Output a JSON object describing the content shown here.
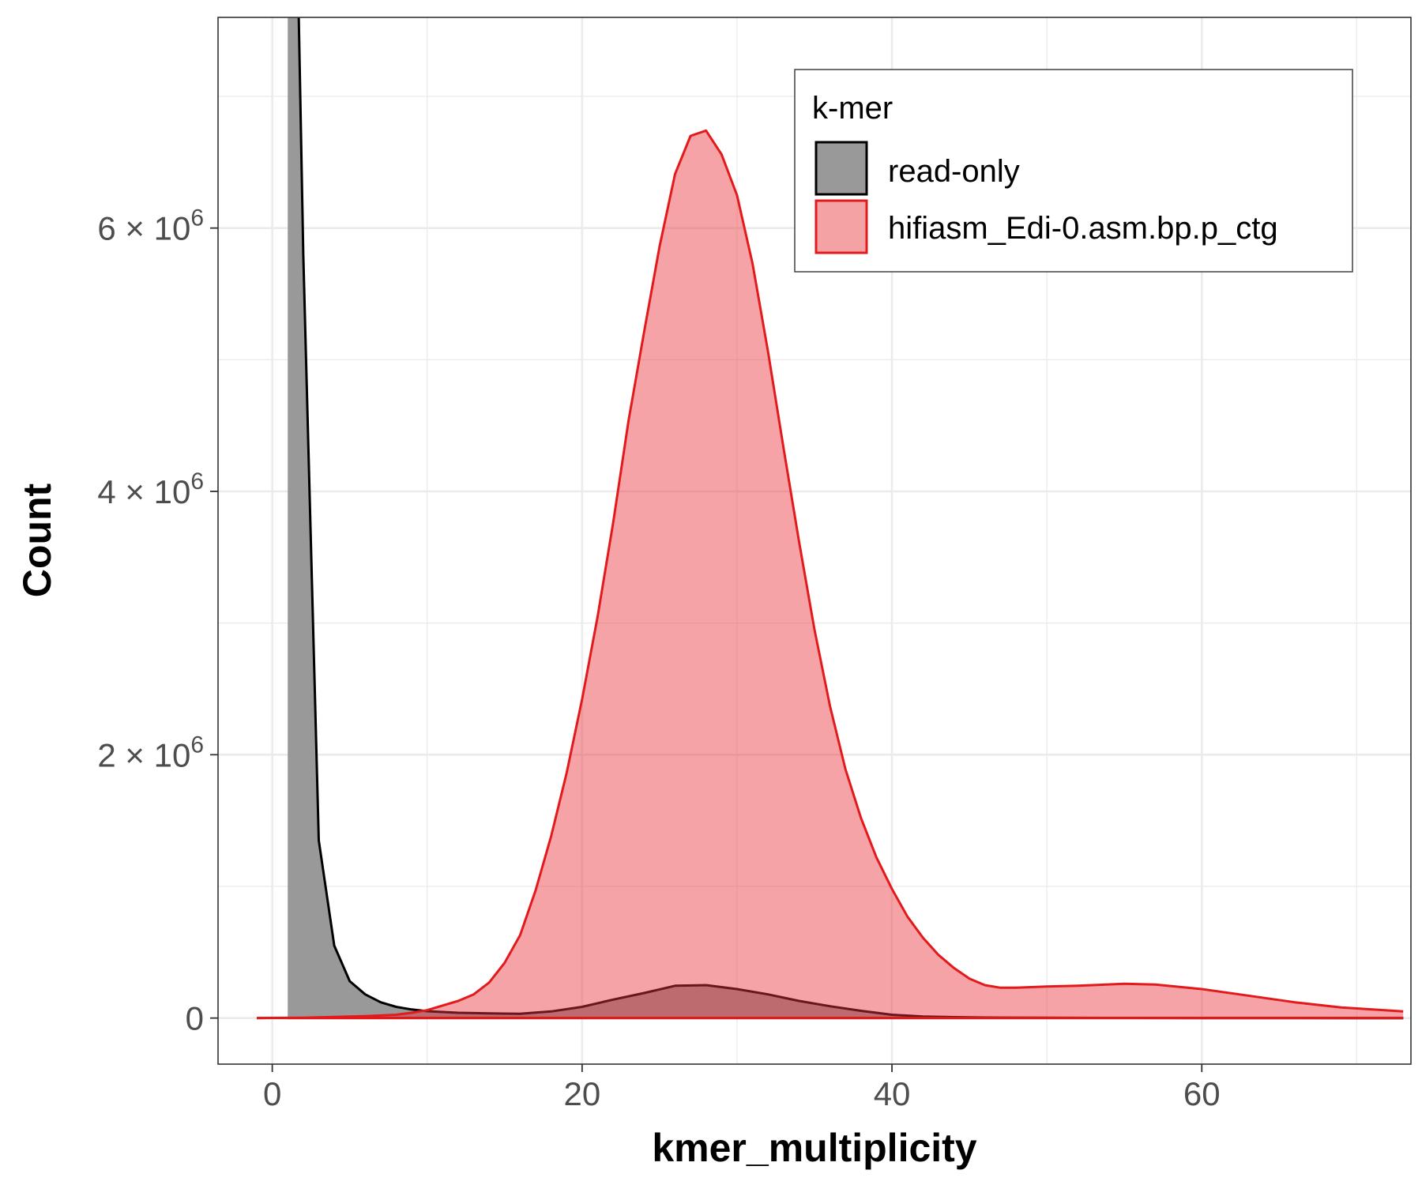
{
  "chart_data": {
    "type": "area",
    "xlabel": "kmer_multiplicity",
    "ylabel": "Count",
    "xlim": [
      -3.5,
      73.5
    ],
    "ylim": [
      -350000,
      7600000
    ],
    "x_ticks": [
      0,
      20,
      40,
      60
    ],
    "x_tick_labels": [
      "0",
      "20",
      "40",
      "60"
    ],
    "y_ticks": [
      0,
      2000000,
      4000000,
      6000000
    ],
    "y_tick_labels": [
      {
        "base": "0",
        "exp": ""
      },
      {
        "base": "2 × 10",
        "exp": "6"
      },
      {
        "base": "4 × 10",
        "exp": "6"
      },
      {
        "base": "6 × 10",
        "exp": "6"
      }
    ],
    "grid": true,
    "legend": {
      "title": "k-mer",
      "position": "top-right",
      "entries": [
        "read-only",
        "hifiasm_Edi-0.asm.bp.p_ctg"
      ]
    },
    "colors": {
      "read_only_fill": "#999999",
      "read_only_line": "#000000",
      "asm_fill": "#f4a3a5",
      "asm_line": "#e31a1c",
      "grid": "#ebebeb",
      "panel_border": "#333333"
    },
    "series": [
      {
        "name": "read-only",
        "x": [
          1,
          2,
          3,
          4,
          5,
          6,
          7,
          8,
          9,
          10,
          12,
          14,
          16,
          18,
          20,
          22,
          24,
          26,
          28,
          30,
          32,
          34,
          36,
          38,
          40,
          42,
          44,
          46,
          50,
          55,
          60,
          65,
          70,
          73
        ],
        "values": [
          12000000,
          5800000,
          1350000,
          550000,
          280000,
          180000,
          120000,
          85000,
          65000,
          52000,
          40000,
          35000,
          32000,
          50000,
          85000,
          140000,
          190000,
          245000,
          250000,
          220000,
          180000,
          130000,
          90000,
          55000,
          25000,
          12000,
          7000,
          4000,
          2000,
          1000,
          500,
          200,
          100,
          50
        ]
      },
      {
        "name": "hifiasm_Edi-0.asm.bp.p_ctg",
        "x": [
          -1,
          0,
          2,
          4,
          6,
          8,
          9,
          10,
          11,
          12,
          13,
          14,
          15,
          16,
          17,
          18,
          19,
          20,
          21,
          22,
          23,
          24,
          25,
          26,
          27,
          28,
          29,
          30,
          31,
          32,
          33,
          34,
          35,
          36,
          37,
          38,
          39,
          40,
          41,
          42,
          43,
          44,
          45,
          46,
          47,
          48,
          50,
          52,
          55,
          57,
          60,
          63,
          66,
          69,
          73
        ],
        "values": [
          0,
          1000,
          3000,
          8000,
          15000,
          25000,
          40000,
          60000,
          95000,
          130000,
          180000,
          270000,
          420000,
          630000,
          970000,
          1380000,
          1860000,
          2420000,
          3050000,
          3760000,
          4540000,
          5210000,
          5860000,
          6410000,
          6700000,
          6740000,
          6560000,
          6250000,
          5730000,
          5060000,
          4330000,
          3620000,
          2950000,
          2370000,
          1890000,
          1520000,
          1220000,
          980000,
          770000,
          610000,
          480000,
          380000,
          300000,
          250000,
          230000,
          230000,
          240000,
          245000,
          260000,
          255000,
          220000,
          170000,
          120000,
          80000,
          50000
        ]
      }
    ]
  }
}
